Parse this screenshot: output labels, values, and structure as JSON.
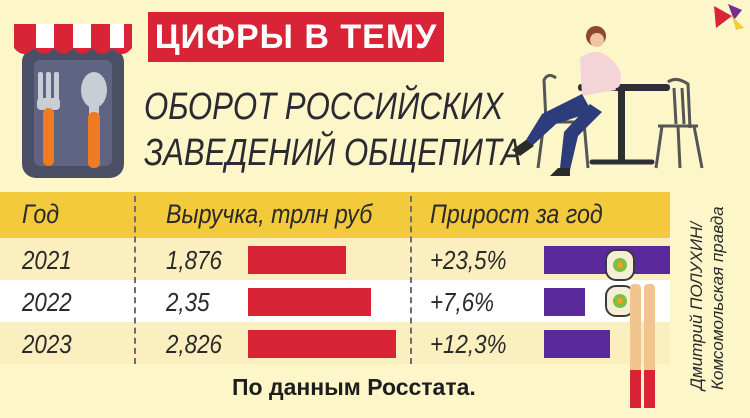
{
  "badge": "ЦИФРЫ В ТЕМУ",
  "title": [
    "ОБОРОТ РОССИЙСКИХ",
    "ЗАВЕДЕНИЙ ОБЩЕПИТА"
  ],
  "footnote": "По данным Росстата.",
  "credit": [
    "Дмитрий ПОЛУХИН/",
    "Комсомольская правда"
  ],
  "icons": [
    "cafe-awning-icon",
    "fork-icon",
    "spoon-icon",
    "woman-at-table-illustration",
    "chair-icon",
    "sushi-roll-icon",
    "chopsticks-icon",
    "logo-icon"
  ],
  "colors": {
    "background": "#fdf6c8",
    "badge": "#d92336",
    "header": "#f3ca3b",
    "revenue_bar": "#d92336",
    "growth_bar": "#5b2a9a"
  },
  "chart_data": {
    "type": "table",
    "columns": [
      "Год",
      "Выручка, трлн руб",
      "Прирост за год"
    ],
    "rows": [
      {
        "year": "2021",
        "revenue": 1.876,
        "revenue_label": "1,876",
        "growth": 23.5,
        "growth_label": "+23,5%"
      },
      {
        "year": "2022",
        "revenue": 2.35,
        "revenue_label": "2,35",
        "growth": 7.6,
        "growth_label": "+7,6%"
      },
      {
        "year": "2023",
        "revenue": 2.826,
        "revenue_label": "2,826",
        "growth": 12.3,
        "growth_label": "+12,3%"
      }
    ]
  }
}
